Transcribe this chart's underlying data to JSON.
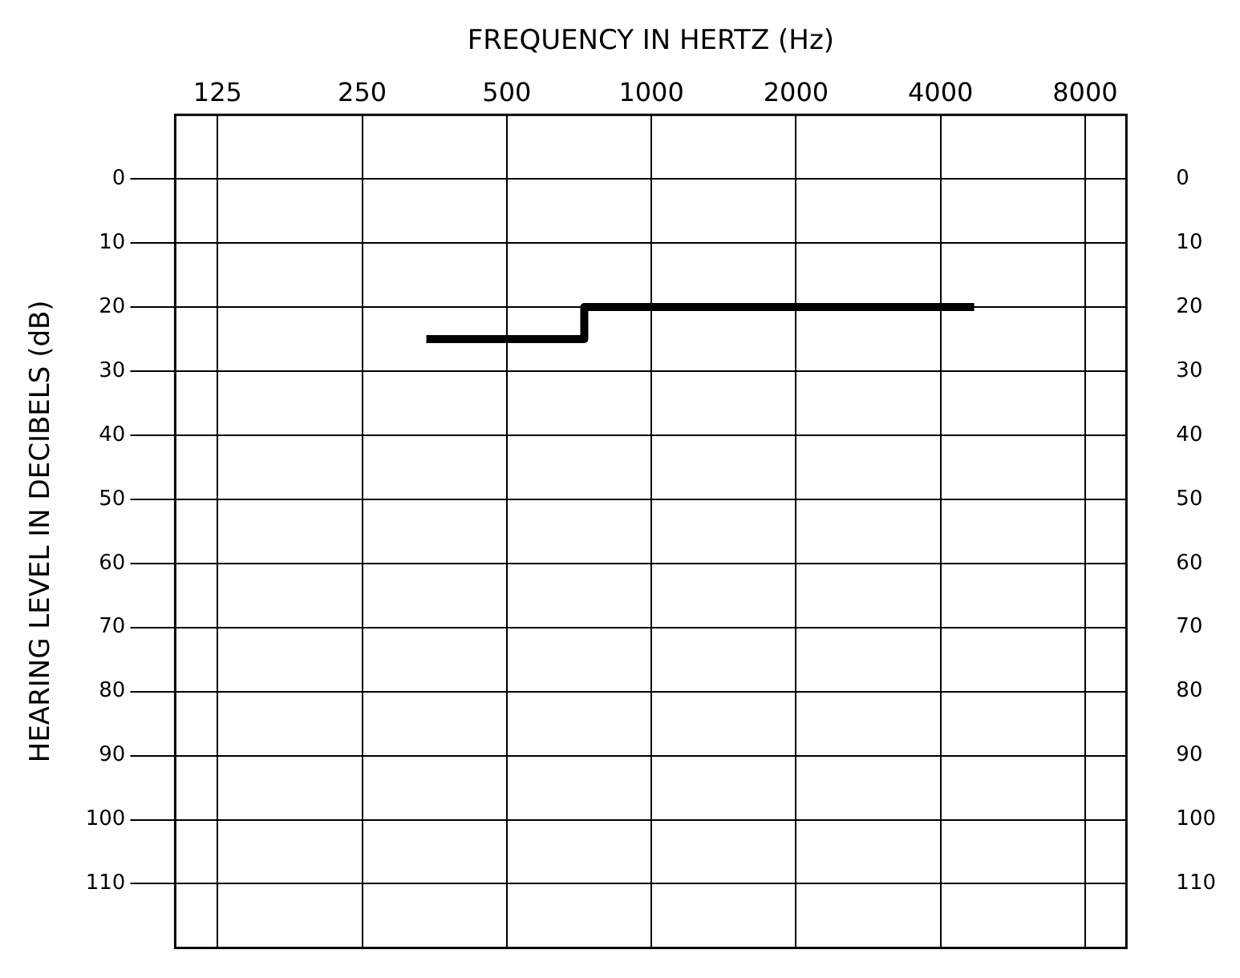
{
  "chart_data": {
    "type": "step",
    "xlabel": "FREQUENCY IN HERTZ (Hz)",
    "ylabel": "HEARING LEVEL IN DECIBELS (dB)",
    "log": "x",
    "series": [
      {
        "color": "#000000",
        "x": [
          340,
          725,
          4700
        ],
        "values": [
          25,
          20,
          20
        ]
      }
    ],
    "xlim": [
      102,
      9750
    ],
    "xticks": [
      125,
      250,
      500,
      1000,
      2000,
      4000,
      8000
    ],
    "ylim": [
      120,
      -10
    ],
    "yticks": [
      0,
      10,
      20,
      30,
      40,
      50,
      60,
      70,
      80,
      90,
      100,
      110
    ],
    "y2lim": [
      120,
      -10
    ],
    "y2ticks": [
      0,
      10,
      20,
      30,
      40,
      50,
      60,
      70,
      80,
      90,
      100,
      110
    ],
    "grid": true,
    "legend": false,
    "marker": "none",
    "line_style": "solid"
  }
}
